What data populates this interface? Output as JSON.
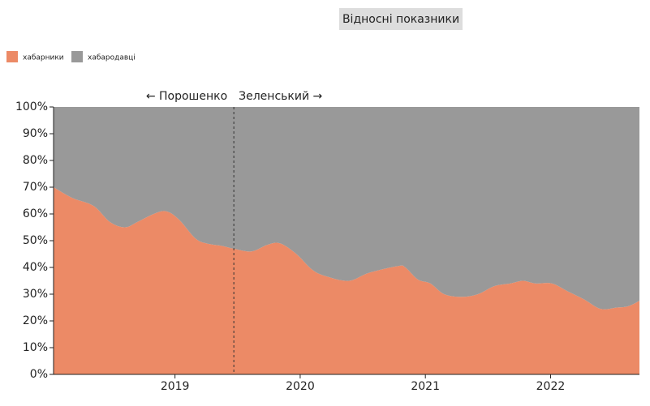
{
  "chart_data": {
    "type": "stacked_area_percent",
    "toggle": "Відносні показники",
    "x": [
      2018.03,
      2018.18,
      2018.35,
      2018.48,
      2018.6,
      2018.7,
      2018.83,
      2018.93,
      2019.03,
      2019.16,
      2019.25,
      2019.38,
      2019.47,
      2019.61,
      2019.74,
      2019.84,
      2019.97,
      2020.1,
      2020.22,
      2020.39,
      2020.55,
      2020.78,
      2020.84,
      2020.94,
      2021.04,
      2021.15,
      2021.29,
      2021.42,
      2021.55,
      2021.68,
      2021.78,
      2021.88,
      2022.01,
      2022.14,
      2022.27,
      2022.4,
      2022.53,
      2022.62,
      2022.71
    ],
    "series": [
      {
        "name": "хабарники",
        "color": "#ec8a66",
        "values": [
          70,
          66,
          63,
          57,
          55,
          57,
          60,
          61,
          58,
          51,
          49,
          48,
          47,
          46,
          48.5,
          49,
          45,
          39,
          36.5,
          35,
          38,
          40.5,
          40,
          35.5,
          34,
          30,
          29,
          30,
          33,
          34,
          35,
          34,
          34,
          31,
          28,
          24.5,
          25,
          25.5,
          27.5
        ]
      },
      {
        "name": "хабародавці",
        "color": "#999999",
        "values": [
          30,
          34,
          37,
          43,
          45,
          43,
          40,
          39,
          42,
          49,
          51,
          52,
          53,
          54,
          51.5,
          51,
          55,
          61,
          63.5,
          65,
          62,
          59.5,
          60,
          64.5,
          66,
          70,
          71,
          70,
          67,
          66,
          65,
          66,
          66,
          69,
          72,
          75.5,
          75,
          74.5,
          72.5
        ]
      }
    ],
    "xlim": [
      2018.03,
      2022.71
    ],
    "xticks": [
      2019,
      2020,
      2021,
      2022
    ],
    "ylim": [
      0,
      100
    ],
    "yticks": [
      {
        "value": 0,
        "label": "0%"
      },
      {
        "value": 10,
        "label": "10%"
      },
      {
        "value": 20,
        "label": "20%"
      },
      {
        "value": 30,
        "label": "30%"
      },
      {
        "value": 40,
        "label": "40%"
      },
      {
        "value": 50,
        "label": "50%"
      },
      {
        "value": 60,
        "label": "60%"
      },
      {
        "value": 70,
        "label": "70%"
      },
      {
        "value": 80,
        "label": "80%"
      },
      {
        "value": 90,
        "label": "90%"
      },
      {
        "value": 100,
        "label": "100%"
      }
    ],
    "divider": {
      "x": 2019.47,
      "left_label": "← Порошенко",
      "right_label": "Зеленський →"
    }
  }
}
